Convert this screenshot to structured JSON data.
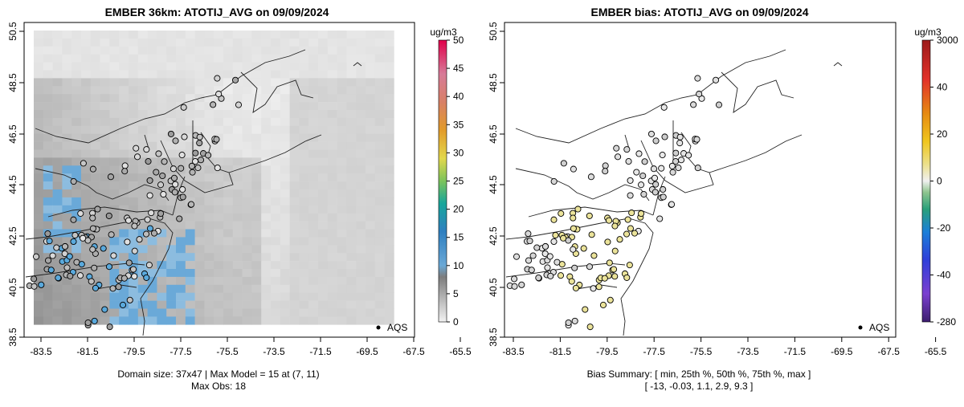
{
  "chart_data": [
    {
      "type": "heatmap",
      "title": "EMBER 36km: ATOTIJ_AVG on 09/09/2024",
      "x_ticks": [
        "-83.5",
        "-81.5",
        "-79.5",
        "-77.5",
        "-75.5",
        "-73.5",
        "-71.5",
        "-69.5",
        "-67.5",
        "-65.5"
      ],
      "y_ticks": [
        "38.5",
        "40.5",
        "42.5",
        "44.5",
        "46.5",
        "48.5",
        "50.5"
      ],
      "colorbar": {
        "unit": "ug/m3",
        "ticks": [
          "0",
          "5",
          "10",
          "15",
          "20",
          "25",
          "30",
          "35",
          "40",
          "45",
          "50"
        ],
        "range": [
          0,
          50
        ]
      },
      "legend": {
        "label": "AQS",
        "position": "bottom-right"
      },
      "footer": [
        "Domain size: 37x47 | Max Model = 15 at (7, 11)",
        "Max Obs: 18"
      ],
      "grid": false
    },
    {
      "type": "scatter",
      "title": "EMBER bias: ATOTIJ_AVG on 09/09/2024",
      "x_ticks": [
        "-83.5",
        "-81.5",
        "-79.5",
        "-77.5",
        "-75.5",
        "-73.5",
        "-71.5",
        "-69.5",
        "-67.5",
        "-65.5"
      ],
      "y_ticks": [
        "38.5",
        "40.5",
        "42.5",
        "44.5",
        "46.5",
        "48.5",
        "50.5"
      ],
      "colorbar": {
        "unit": "ug/m3",
        "ticks": [
          "-280",
          "-40",
          "-20",
          "0",
          "20",
          "40",
          "3000"
        ]
      },
      "legend": {
        "label": "AQS",
        "position": "bottom-right"
      },
      "footer": [
        "Bias Summary: [ min, 25th %, 50th %, 75th %, max ]",
        "[ -13,   -0.03,   1.1,   2.9,   9.3 ]"
      ],
      "bias_summary": {
        "min": -13,
        "p25": -0.03,
        "p50": 1.1,
        "p75": 2.9,
        "max": 9.3
      },
      "grid": false
    }
  ],
  "colors": {
    "obs_high": "#5aa9dc",
    "bias_positive": "#ebe39a",
    "land_grey": "#c8c8c8"
  }
}
